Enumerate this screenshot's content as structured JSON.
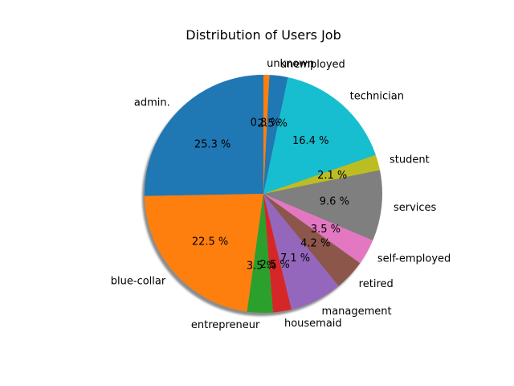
{
  "chart_data": {
    "type": "pie",
    "title": "Distribution of Users Job",
    "start_angle_deg": 90,
    "direction": "counterclockwise",
    "shadow": true,
    "slices": [
      {
        "label": "admin.",
        "value": 25.3,
        "pct_text": "25.3 %",
        "color": "#1f77b4"
      },
      {
        "label": "blue-collar",
        "value": 22.5,
        "pct_text": "22.5 %",
        "color": "#ff7f0e"
      },
      {
        "label": "entrepreneur",
        "value": 3.5,
        "pct_text": "3.5 %",
        "color": "#2ca02c"
      },
      {
        "label": "housemaid",
        "value": 2.5,
        "pct_text": "2.5 %",
        "color": "#d62728"
      },
      {
        "label": "management",
        "value": 7.1,
        "pct_text": "7.1 %",
        "color": "#9467bd"
      },
      {
        "label": "retired",
        "value": 4.2,
        "pct_text": "4.2 %",
        "color": "#8c564b"
      },
      {
        "label": "self-employed",
        "value": 3.5,
        "pct_text": "3.5 %",
        "color": "#e377c2"
      },
      {
        "label": "services",
        "value": 9.6,
        "pct_text": "9.6 %",
        "color": "#7f7f7f"
      },
      {
        "label": "student",
        "value": 2.1,
        "pct_text": "2.1 %",
        "color": "#bcbd22"
      },
      {
        "label": "technician",
        "value": 16.4,
        "pct_text": "16.4 %",
        "color": "#17becf"
      },
      {
        "label": "unemployed",
        "value": 2.5,
        "pct_text": "2.5 %",
        "color": "#1f77b4"
      },
      {
        "label": "unknown",
        "value": 0.8,
        "pct_text": "0.8 %",
        "color": "#ff7f0e"
      }
    ]
  }
}
